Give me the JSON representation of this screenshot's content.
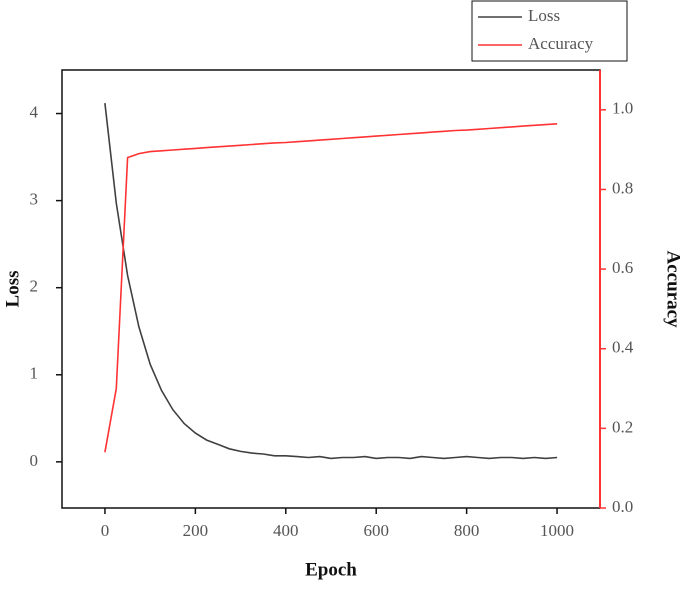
{
  "chart_data": {
    "type": "line",
    "x": [
      0,
      25,
      50,
      75,
      100,
      125,
      150,
      175,
      200,
      225,
      250,
      275,
      300,
      325,
      350,
      375,
      400,
      425,
      450,
      475,
      500,
      525,
      550,
      575,
      600,
      625,
      650,
      675,
      700,
      725,
      750,
      775,
      800,
      825,
      850,
      875,
      900,
      925,
      950,
      975,
      1000
    ],
    "series": [
      {
        "name": "Loss",
        "color": "#404040",
        "axis": "y",
        "values": [
          4.12,
          2.97,
          2.14,
          1.55,
          1.12,
          0.82,
          0.6,
          0.44,
          0.33,
          0.25,
          0.2,
          0.15,
          0.12,
          0.1,
          0.09,
          0.07,
          0.07,
          0.06,
          0.05,
          0.06,
          0.04,
          0.05,
          0.05,
          0.06,
          0.04,
          0.05,
          0.05,
          0.04,
          0.06,
          0.05,
          0.04,
          0.05,
          0.06,
          0.05,
          0.04,
          0.05,
          0.05,
          0.04,
          0.05,
          0.04,
          0.05
        ]
      },
      {
        "name": "Accuracy",
        "color": "#ff3333",
        "axis": "y2",
        "values": [
          0.14,
          0.3,
          0.88,
          0.89,
          0.895,
          0.897,
          0.899,
          0.901,
          0.903,
          0.905,
          0.907,
          0.909,
          0.911,
          0.913,
          0.915,
          0.917,
          0.918,
          0.92,
          0.922,
          0.924,
          0.926,
          0.928,
          0.93,
          0.932,
          0.934,
          0.936,
          0.938,
          0.94,
          0.942,
          0.944,
          0.946,
          0.948,
          0.949,
          0.951,
          0.953,
          0.955,
          0.957,
          0.959,
          0.961,
          0.963,
          0.965
        ]
      }
    ],
    "x_label": "Epoch",
    "y_label": "Loss",
    "y2_label": "Accuracy",
    "xlim": [
      -95,
      1095
    ],
    "xticks": [
      0,
      200,
      400,
      600,
      800,
      1000
    ],
    "ylim": [
      -0.53,
      4.5
    ],
    "yticks": [
      0,
      1,
      2,
      3,
      4
    ],
    "y2lim": [
      0,
      1.1
    ],
    "y2ticks": [
      {
        "value": 0,
        "label": "0.0"
      },
      0.2,
      0.4,
      0.6,
      0.8,
      {
        "value": 1,
        "label": "1.0"
      }
    ],
    "y2_color": "#ff3333",
    "legend": "top-right"
  }
}
